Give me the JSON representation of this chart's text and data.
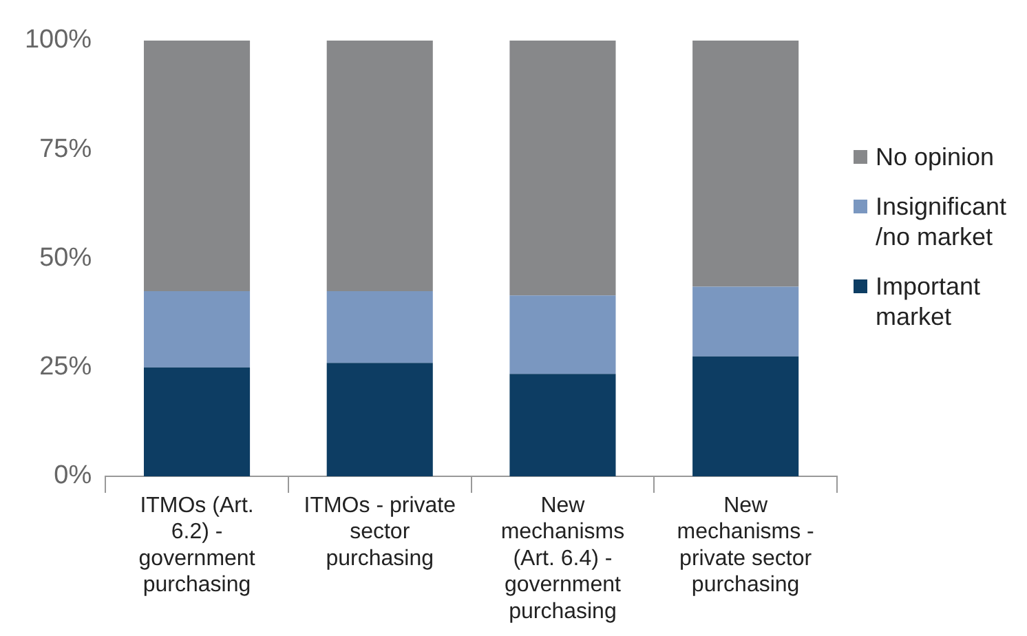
{
  "chart_data": {
    "type": "bar",
    "stacked": true,
    "categories": [
      "ITMOs (Art. 6.2) - government purchasing",
      "ITMOs - private sector purchasing",
      "New mechanisms (Art. 6.4) - government purchasing",
      "New mechanisms - private sector purchasing"
    ],
    "series": [
      {
        "name": "Important market",
        "color": "#0d3d63",
        "values": [
          25,
          26,
          23.5,
          27.5
        ]
      },
      {
        "name": "Insignificant /no market",
        "color": "#7a97c0",
        "values": [
          17.5,
          16.5,
          18,
          16
        ]
      },
      {
        "name": "No opinion",
        "color": "#87888a",
        "values": [
          57.5,
          57.5,
          58.5,
          56.5
        ]
      }
    ],
    "ylim": [
      0,
      100
    ],
    "yticks": [
      {
        "value": 0,
        "label": "0%"
      },
      {
        "value": 25,
        "label": "25%"
      },
      {
        "value": 50,
        "label": "50%"
      },
      {
        "value": 75,
        "label": "75%"
      },
      {
        "value": 100,
        "label": "100%"
      }
    ],
    "grid": false,
    "legend": "right"
  }
}
